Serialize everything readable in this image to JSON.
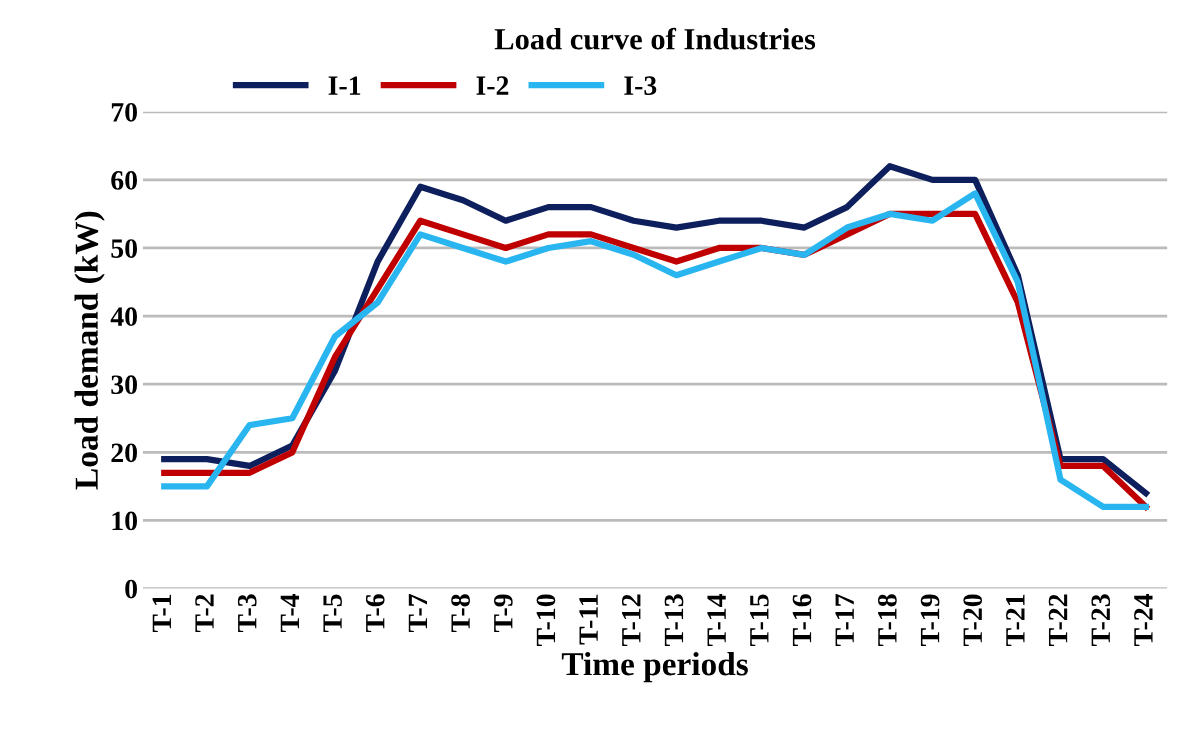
{
  "chart_data": {
    "type": "line",
    "title": "Load curve of Industries",
    "xlabel": "Time periods",
    "ylabel": "Load demand (kW)",
    "categories": [
      "T-1",
      "T-2",
      "T-3",
      "T-4",
      "T-5",
      "T-6",
      "T-7",
      "T-8",
      "T-9",
      "T-10",
      "T-11",
      "T-12",
      "T-13",
      "T-14",
      "T-15",
      "T-16",
      "T-17",
      "T-18",
      "T-19",
      "T-20",
      "T-21",
      "T-22",
      "T-23",
      "T-24"
    ],
    "series": [
      {
        "name": "I-1",
        "color": "#0d1f5c",
        "values": [
          19,
          19,
          18,
          21,
          32,
          48,
          59,
          57,
          54,
          56,
          56,
          54,
          53,
          54,
          54,
          53,
          56,
          62,
          60,
          60,
          46,
          19,
          19,
          14
        ]
      },
      {
        "name": "I-2",
        "color": "#c00000",
        "values": [
          17,
          17,
          17,
          20,
          34,
          44,
          54,
          52,
          50,
          52,
          52,
          50,
          48,
          50,
          50,
          49,
          52,
          55,
          55,
          55,
          42,
          18,
          18,
          12
        ]
      },
      {
        "name": "I-3",
        "color": "#29b6f0",
        "values": [
          15,
          15,
          24,
          25,
          37,
          42,
          52,
          50,
          48,
          50,
          51,
          49,
          46,
          48,
          50,
          49,
          53,
          55,
          54,
          58,
          45,
          16,
          12,
          12
        ]
      }
    ],
    "ylim": [
      0,
      70
    ],
    "yticks": [
      0,
      10,
      20,
      30,
      40,
      50,
      60,
      70
    ],
    "grid": "y",
    "legend": "top left",
    "marker": "none",
    "line_style": "solid"
  }
}
